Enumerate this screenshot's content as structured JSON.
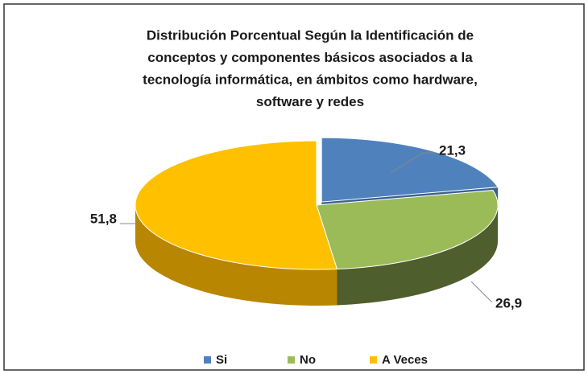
{
  "chart_data": {
    "type": "pie",
    "title": [
      "Distribución Porcentual Según la Identificación de",
      "conceptos y componentes básicos asociados a la",
      "tecnología informática, en ámbitos como hardware,",
      "software y redes"
    ],
    "categories": [
      "Si",
      "No",
      "A Veces"
    ],
    "values": [
      21.3,
      26.9,
      51.8
    ],
    "value_labels": [
      "21,3",
      "26,9",
      "51,8"
    ],
    "colors": [
      "#4f81bd",
      "#9bbb59",
      "#ffc000"
    ],
    "legend": "bottom"
  }
}
